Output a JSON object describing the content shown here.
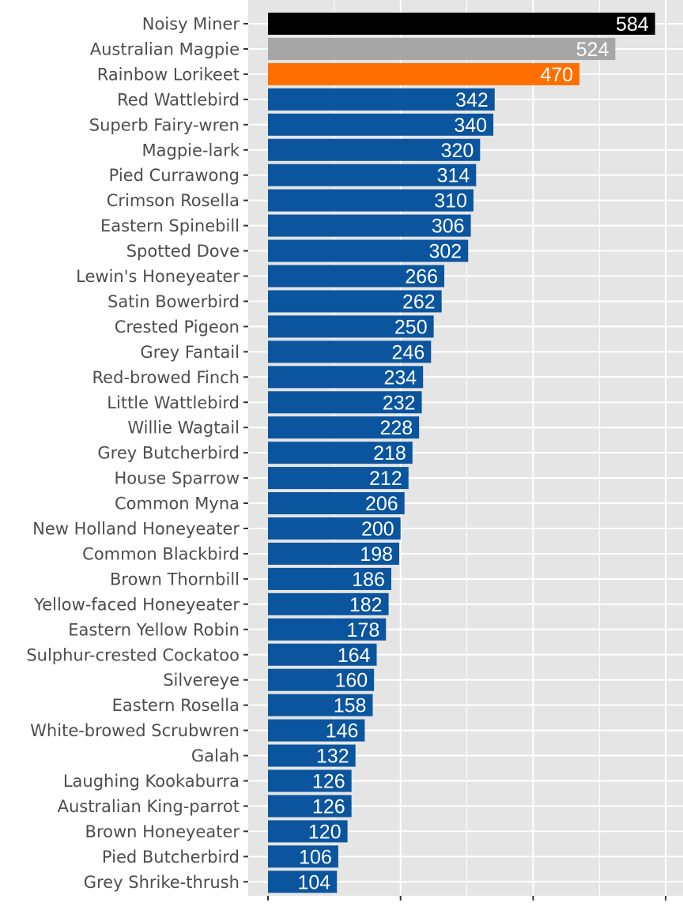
{
  "chart_data": {
    "type": "bar",
    "orientation": "horizontal",
    "title": "",
    "xlabel": "",
    "ylabel": "",
    "xlim": [
      0,
      600
    ],
    "grid": true,
    "legend": "none",
    "colors": {
      "panel": "#e5e5e5",
      "grid": "#ffffff",
      "default_bar": "#0b559f",
      "highlight_1": "#000000",
      "highlight_2": "#a6a6a6",
      "highlight_3": "#ff6f00"
    },
    "categories": [
      "Noisy Miner",
      "Australian Magpie",
      "Rainbow Lorikeet",
      "Red Wattlebird",
      "Superb Fairy-wren",
      "Magpie-lark",
      "Pied Currawong",
      "Crimson Rosella",
      "Eastern Spinebill",
      "Spotted Dove",
      "Lewin's Honeyeater",
      "Satin Bowerbird",
      "Crested Pigeon",
      "Grey Fantail",
      "Red-browed Finch",
      "Little Wattlebird",
      "Willie Wagtail",
      "Grey Butcherbird",
      "House Sparrow",
      "Common Myna",
      "New Holland Honeyeater",
      "Common Blackbird",
      "Brown Thornbill",
      "Yellow-faced Honeyeater",
      "Eastern Yellow Robin",
      "Sulphur-crested Cockatoo",
      "Silvereye",
      "Eastern Rosella",
      "White-browed Scrubwren",
      "Galah",
      "Laughing Kookaburra",
      "Australian King-parrot",
      "Brown Honeyeater",
      "Pied Butcherbird",
      "Grey Shrike-thrush"
    ],
    "values": [
      584,
      524,
      470,
      342,
      340,
      320,
      314,
      310,
      306,
      302,
      266,
      262,
      250,
      246,
      234,
      232,
      228,
      218,
      212,
      206,
      200,
      198,
      186,
      182,
      178,
      164,
      160,
      158,
      146,
      132,
      126,
      126,
      120,
      106,
      104
    ],
    "bar_colors": [
      "#000000",
      "#a6a6a6",
      "#ff6f00",
      "#0b559f",
      "#0b559f",
      "#0b559f",
      "#0b559f",
      "#0b559f",
      "#0b559f",
      "#0b559f",
      "#0b559f",
      "#0b559f",
      "#0b559f",
      "#0b559f",
      "#0b559f",
      "#0b559f",
      "#0b559f",
      "#0b559f",
      "#0b559f",
      "#0b559f",
      "#0b559f",
      "#0b559f",
      "#0b559f",
      "#0b559f",
      "#0b559f",
      "#0b559f",
      "#0b559f",
      "#0b559f",
      "#0b559f",
      "#0b559f",
      "#0b559f",
      "#0b559f",
      "#0b559f",
      "#0b559f",
      "#0b559f"
    ]
  }
}
